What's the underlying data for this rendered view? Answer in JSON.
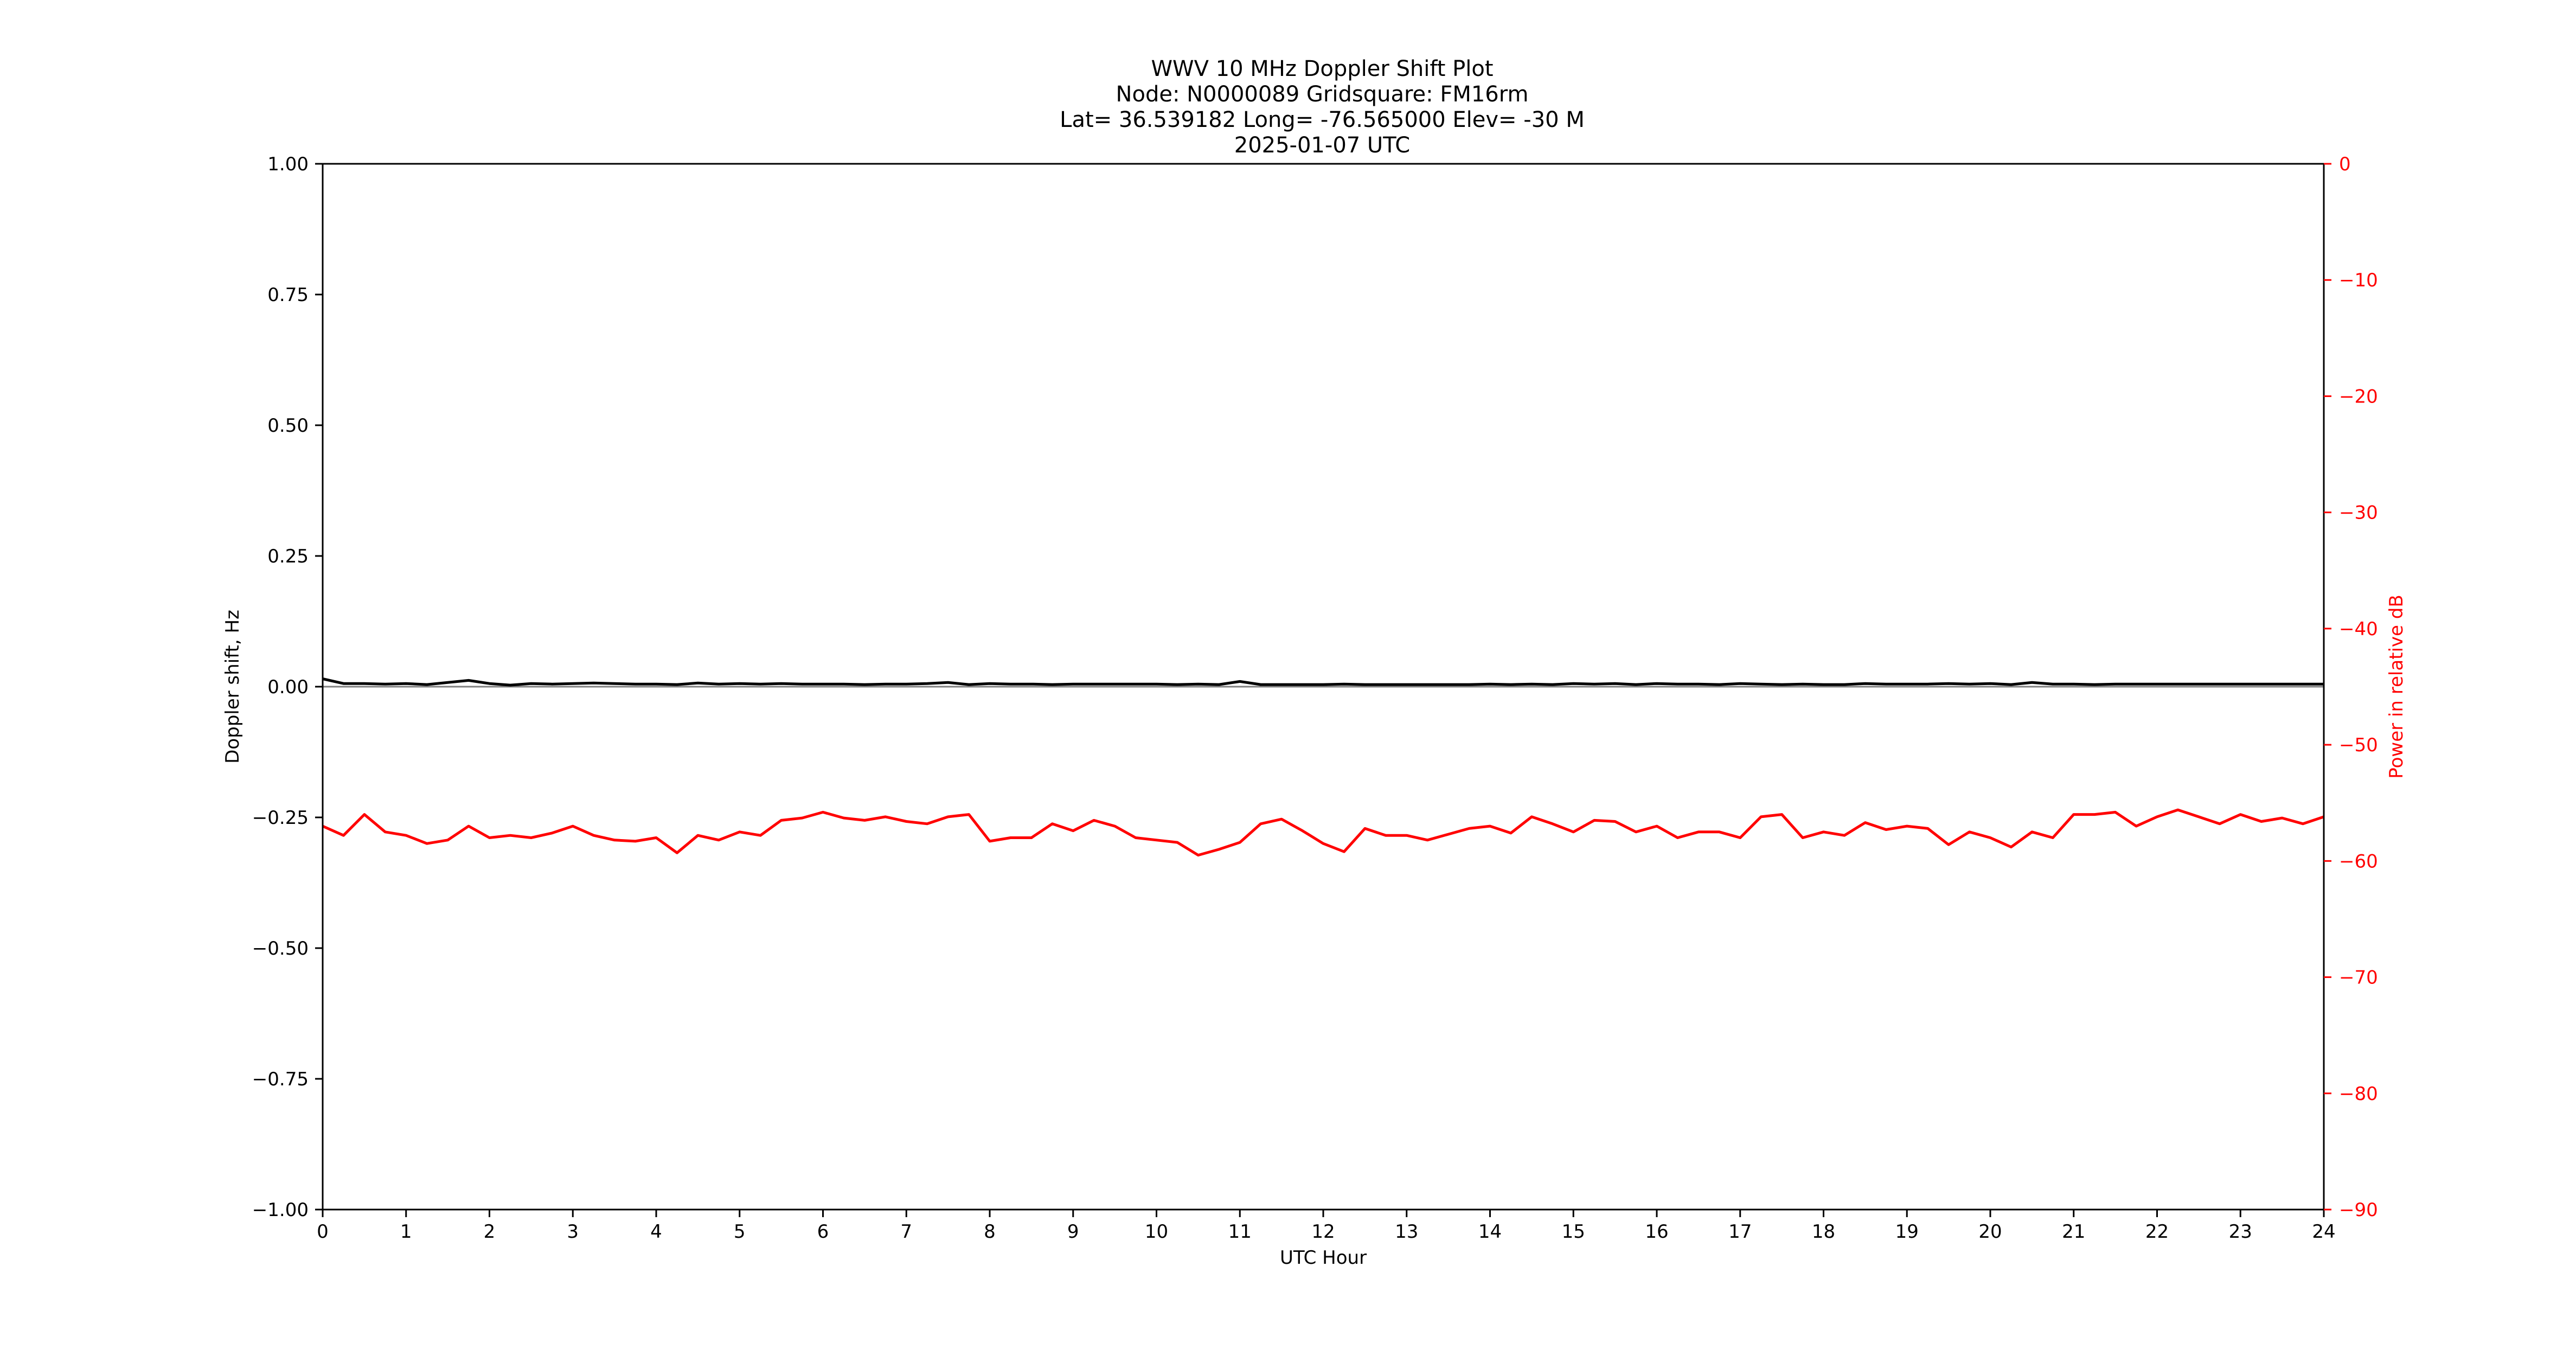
{
  "chart_data": {
    "type": "line",
    "title_lines": [
      "WWV 10 MHz Doppler Shift Plot",
      "Node:  N0000089     Gridsquare:  FM16rm",
      "Lat= 36.539182    Long= -76.565000    Elev= -30 M",
      "2025-01-07  UTC"
    ],
    "xlabel": "UTC Hour",
    "ylabel": "Doppler shift, Hz",
    "y2label": "Power in relative dB",
    "xlim": [
      0,
      24
    ],
    "ylim": [
      -1.0,
      1.0
    ],
    "y2lim": [
      -90,
      0
    ],
    "x_ticks": [
      "0",
      "1",
      "2",
      "3",
      "4",
      "5",
      "6",
      "7",
      "8",
      "9",
      "10",
      "11",
      "12",
      "13",
      "14",
      "15",
      "16",
      "17",
      "18",
      "19",
      "20",
      "21",
      "22",
      "23",
      "24"
    ],
    "y_ticks": [
      {
        "value": 1.0,
        "label": "1.00"
      },
      {
        "value": 0.75,
        "label": "0.75"
      },
      {
        "value": 0.5,
        "label": "0.50"
      },
      {
        "value": 0.25,
        "label": "0.25"
      },
      {
        "value": 0.0,
        "label": "0.00"
      },
      {
        "value": -0.25,
        "label": "−0.25"
      },
      {
        "value": -0.5,
        "label": "−0.50"
      },
      {
        "value": -0.75,
        "label": "−0.75"
      },
      {
        "value": -1.0,
        "label": "−1.00"
      }
    ],
    "y2_ticks": [
      {
        "value": 0,
        "label": "0"
      },
      {
        "value": -10,
        "label": "−10"
      },
      {
        "value": -20,
        "label": "−20"
      },
      {
        "value": -30,
        "label": "−30"
      },
      {
        "value": -40,
        "label": "−40"
      },
      {
        "value": -50,
        "label": "−50"
      },
      {
        "value": -60,
        "label": "−60"
      },
      {
        "value": -70,
        "label": "−70"
      },
      {
        "value": -80,
        "label": "−80"
      },
      {
        "value": -90,
        "label": "−90"
      }
    ],
    "grid": false,
    "colors": {
      "doppler": "#000000",
      "power": "#ff0000",
      "zero_line": "#808080"
    },
    "series": [
      {
        "axis": "left",
        "color": "#000000",
        "x": [
          0,
          0.25,
          0.5,
          0.75,
          1,
          1.25,
          1.5,
          1.75,
          2,
          2.25,
          2.5,
          2.75,
          3,
          3.25,
          3.5,
          3.75,
          4,
          4.25,
          4.5,
          4.75,
          5,
          5.25,
          5.5,
          5.75,
          6,
          6.25,
          6.5,
          6.75,
          7,
          7.25,
          7.5,
          7.75,
          8,
          8.25,
          8.5,
          8.75,
          9,
          9.25,
          9.5,
          9.75,
          10,
          10.25,
          10.5,
          10.75,
          11,
          11.25,
          11.5,
          11.75,
          12,
          12.25,
          12.5,
          12.75,
          13,
          13.25,
          13.5,
          13.75,
          14,
          14.25,
          14.5,
          14.75,
          15,
          15.25,
          15.5,
          15.75,
          16,
          16.25,
          16.5,
          16.75,
          17,
          17.25,
          17.5,
          17.75,
          18,
          18.25,
          18.5,
          18.75,
          19,
          19.25,
          19.5,
          19.75,
          20,
          20.25,
          20.5,
          20.75,
          21,
          21.25,
          21.5,
          21.75,
          22,
          22.25,
          22.5,
          22.75,
          23,
          23.25,
          23.5,
          23.75,
          24
        ],
        "values": [
          0.015,
          0.006,
          0.006,
          0.005,
          0.006,
          0.004,
          0.008,
          0.012,
          0.006,
          0.003,
          0.006,
          0.005,
          0.006,
          0.007,
          0.006,
          0.005,
          0.005,
          0.004,
          0.007,
          0.005,
          0.006,
          0.005,
          0.006,
          0.005,
          0.005,
          0.005,
          0.004,
          0.005,
          0.005,
          0.006,
          0.008,
          0.004,
          0.006,
          0.005,
          0.005,
          0.004,
          0.005,
          0.005,
          0.005,
          0.005,
          0.005,
          0.004,
          0.005,
          0.004,
          0.01,
          0.004,
          0.004,
          0.004,
          0.004,
          0.005,
          0.004,
          0.004,
          0.004,
          0.004,
          0.004,
          0.004,
          0.005,
          0.004,
          0.005,
          0.004,
          0.006,
          0.005,
          0.006,
          0.004,
          0.006,
          0.005,
          0.005,
          0.004,
          0.006,
          0.005,
          0.004,
          0.005,
          0.004,
          0.004,
          0.006,
          0.005,
          0.005,
          0.005,
          0.006,
          0.005,
          0.006,
          0.004,
          0.008,
          0.005,
          0.005,
          0.004,
          0.005,
          0.005,
          0.005,
          0.005,
          0.005,
          0.005,
          0.005,
          0.005,
          0.005,
          0.005,
          0.005
        ]
      },
      {
        "axis": "right",
        "color": "#ff0000",
        "x": [
          0,
          0.25,
          0.5,
          0.75,
          1,
          1.25,
          1.5,
          1.75,
          2,
          2.25,
          2.5,
          2.75,
          3,
          3.25,
          3.5,
          3.75,
          4,
          4.25,
          4.5,
          4.75,
          5,
          5.25,
          5.5,
          5.75,
          6,
          6.25,
          6.5,
          6.75,
          7,
          7.25,
          7.5,
          7.75,
          8,
          8.25,
          8.5,
          8.75,
          9,
          9.25,
          9.5,
          9.75,
          10,
          10.25,
          10.5,
          10.75,
          11,
          11.25,
          11.5,
          11.75,
          12,
          12.25,
          12.5,
          12.75,
          13,
          13.25,
          13.5,
          13.75,
          14,
          14.25,
          14.5,
          14.75,
          15,
          15.25,
          15.5,
          15.75,
          16,
          16.25,
          16.5,
          16.75,
          17,
          17.25,
          17.5,
          17.75,
          18,
          18.25,
          18.5,
          18.75,
          19,
          19.25,
          19.5,
          19.75,
          20,
          20.25,
          20.5,
          20.75,
          21,
          21.25,
          21.5,
          21.75,
          22,
          22.25,
          22.5,
          22.75,
          23,
          23.25,
          23.5,
          23.75,
          24
        ],
        "values": [
          -57.0,
          -57.8,
          -56.0,
          -57.5,
          -57.8,
          -58.5,
          -58.2,
          -57.0,
          -58.0,
          -57.8,
          -58.0,
          -57.6,
          -57.0,
          -57.8,
          -58.2,
          -58.3,
          -58.0,
          -59.3,
          -57.8,
          -58.2,
          -57.5,
          -57.8,
          -56.5,
          -56.3,
          -55.8,
          -56.3,
          -56.5,
          -56.2,
          -56.6,
          -56.8,
          -56.2,
          -56.0,
          -58.3,
          -58.0,
          -58.0,
          -56.8,
          -57.4,
          -56.5,
          -57.0,
          -58.0,
          -58.2,
          -58.4,
          -59.5,
          -59.0,
          -58.4,
          -56.8,
          -56.4,
          -57.4,
          -58.5,
          -59.2,
          -57.2,
          -57.8,
          -57.8,
          -58.2,
          -57.7,
          -57.2,
          -57.0,
          -57.6,
          -56.2,
          -56.8,
          -57.5,
          -56.5,
          -56.6,
          -57.5,
          -57.0,
          -58.0,
          -57.5,
          -57.5,
          -58.0,
          -56.2,
          -56.0,
          -58.0,
          -57.5,
          -57.8,
          -56.7,
          -57.3,
          -57.0,
          -57.2,
          -58.6,
          -57.5,
          -58.0,
          -58.8,
          -57.5,
          -58.0,
          -56.0,
          -56.0,
          -55.8,
          -57.0,
          -56.2,
          -55.6,
          -56.2,
          -56.8,
          -56.0,
          -56.6,
          -56.3,
          -56.8,
          -56.2
        ]
      }
    ]
  }
}
